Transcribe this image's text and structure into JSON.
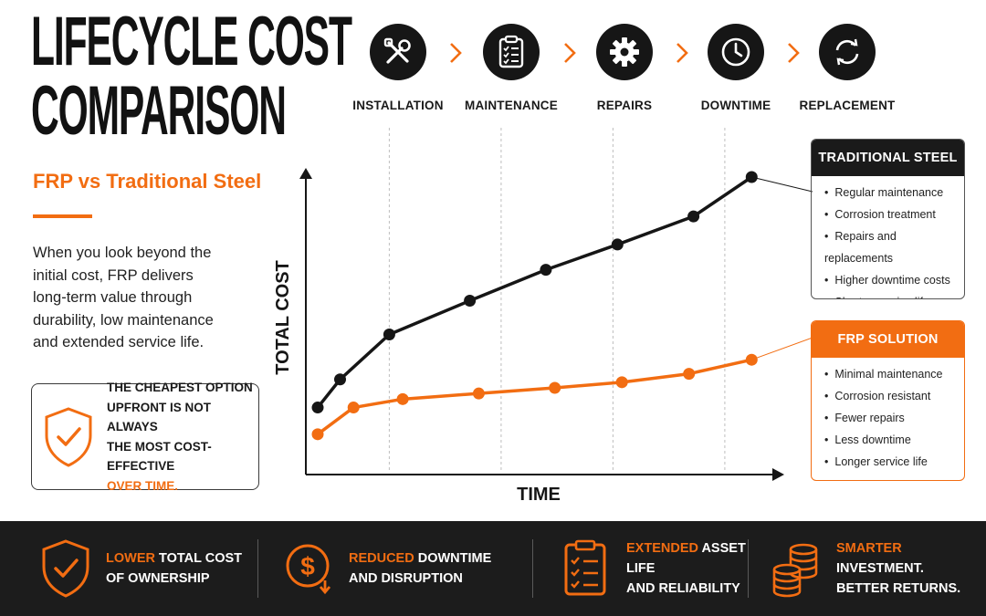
{
  "header": {
    "title_line1": "LIFECYCLE COST",
    "title_line2": "COMPARISON",
    "subtitle": "FRP vs Traditional Steel"
  },
  "intro": "When you look beyond the initial cost, FRP delivers long-term value through durability, low maintenance and extended service life.",
  "callout": {
    "line1": "THE CHEAPEST OPTION",
    "line2": "UPFRONT IS NOT ALWAYS",
    "line3": "THE MOST COST-EFFECTIVE",
    "highlight": "OVER TIME.",
    "icon": "shield-check-icon"
  },
  "steps": [
    {
      "label": "INSTALLATION",
      "icon": "tools-icon"
    },
    {
      "label": "MAINTENANCE",
      "icon": "clipboard-checklist-icon"
    },
    {
      "label": "REPAIRS",
      "icon": "gear-icon"
    },
    {
      "label": "DOWNTIME",
      "icon": "clock-icon"
    },
    {
      "label": "REPLACEMENT",
      "icon": "refresh-icon"
    }
  ],
  "chart_data": {
    "type": "line",
    "xlabel": "TIME",
    "ylabel": "TOTAL COST",
    "x": [
      0,
      0.5,
      1.6,
      3.4,
      5.1,
      6.7,
      8.4,
      9.7
    ],
    "xlim": [
      0,
      10
    ],
    "ylim": [
      0,
      10
    ],
    "grid": "vertical dashed lines at process stages",
    "series": [
      {
        "name": "TRADITIONAL STEEL",
        "color": "#161616",
        "x": [
          0,
          0.5,
          1.6,
          3.4,
          5.1,
          6.7,
          8.4,
          9.7
        ],
        "values": [
          1.8,
          2.8,
          4.4,
          5.6,
          6.7,
          7.6,
          8.6,
          10.0
        ]
      },
      {
        "name": "FRP SOLUTION",
        "color": "#f26d12",
        "x": [
          0,
          0.8,
          1.9,
          3.6,
          5.3,
          6.8,
          8.3,
          9.7
        ],
        "values": [
          0.85,
          1.8,
          2.1,
          2.3,
          2.5,
          2.7,
          3.0,
          3.5
        ]
      }
    ]
  },
  "legend": {
    "steel": {
      "title": "TRADITIONAL STEEL",
      "items": [
        "Regular maintenance",
        "Corrosion treatment",
        "Repairs and replacements",
        "Higher downtime costs",
        "Shorter service life"
      ]
    },
    "frp": {
      "title": "FRP SOLUTION",
      "items": [
        "Minimal maintenance",
        "Corrosion resistant",
        "Fewer repairs",
        "Less downtime",
        "Longer service life"
      ]
    }
  },
  "footer": [
    {
      "icon": "shield-check-icon",
      "highlight": "LOWER",
      "rest": " TOTAL COST",
      "line2": "OF OWNERSHIP"
    },
    {
      "icon": "dollar-down-icon",
      "highlight": "REDUCED",
      "rest": " DOWNTIME",
      "line2": "AND DISRUPTION"
    },
    {
      "icon": "checklist-icon",
      "highlight": "EXTENDED",
      "rest": " ASSET LIFE",
      "line2": "AND RELIABILITY"
    },
    {
      "icon": "coin-stack-icon",
      "highlight": "SMARTER",
      "rest": " INVESTMENT.",
      "line2": "BETTER RETURNS."
    }
  ],
  "colors": {
    "accent": "#f26d12",
    "dark": "#161616",
    "footer_bg": "#1c1c1c"
  }
}
